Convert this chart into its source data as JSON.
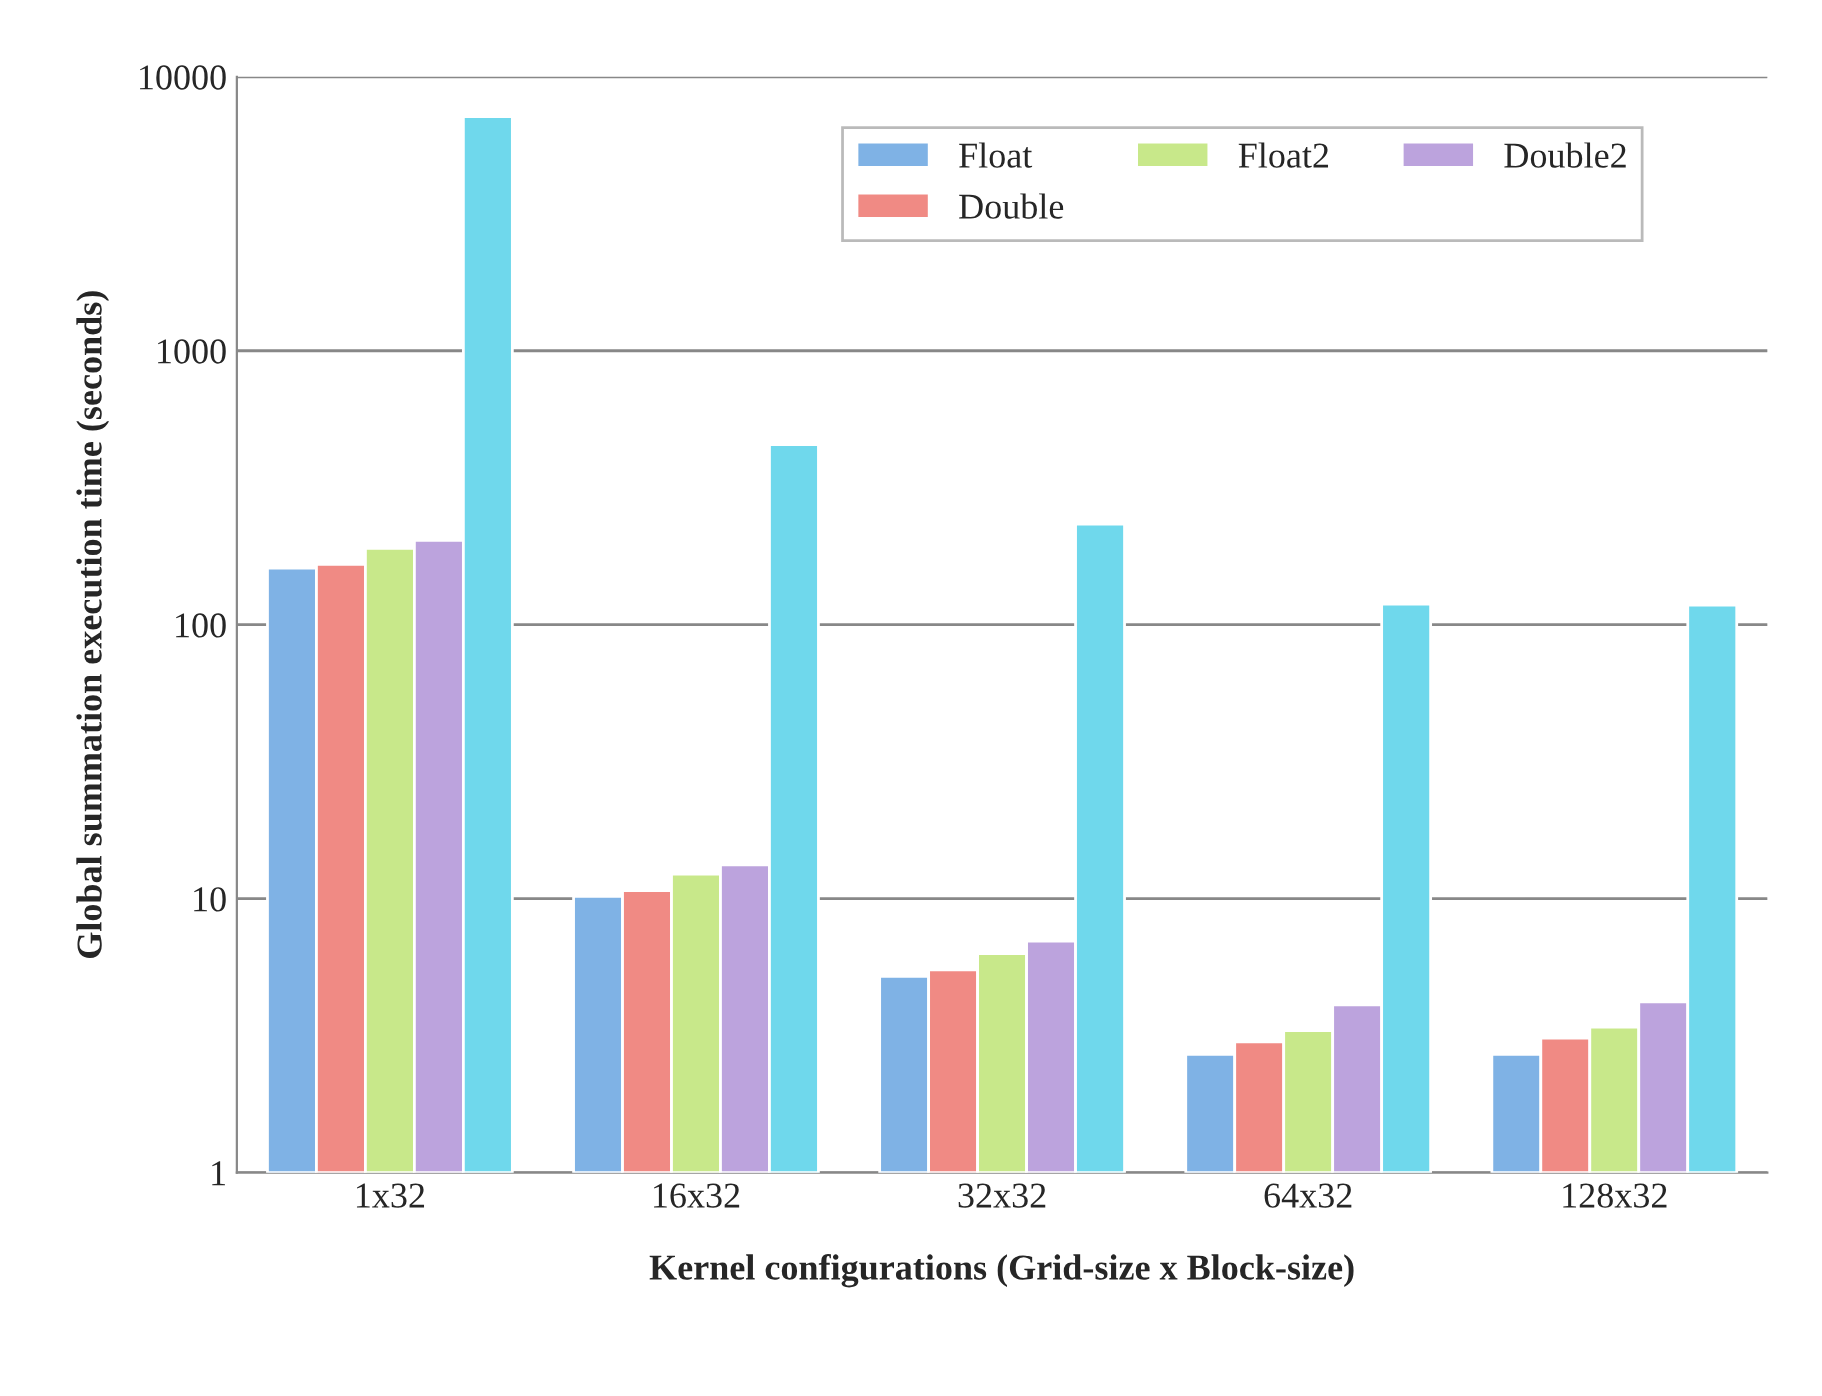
{
  "chart_data": {
    "type": "bar",
    "xlabel": "Kernel configurations (Grid-size x Block-size)",
    "ylabel": "Global summation execution time (seconds)",
    "categories": [
      "1x32",
      "16x32",
      "32x32",
      "64x32",
      "128x32"
    ],
    "series": [
      {
        "name": "Float",
        "color": "#7fb2e5",
        "values": [
          161,
          10.2,
          5.2,
          2.7,
          2.7
        ]
      },
      {
        "name": "Double",
        "color": "#f08a84",
        "values": [
          166,
          10.7,
          5.5,
          3.0,
          3.1
        ]
      },
      {
        "name": "Float2",
        "color": "#c8e88a",
        "values": [
          190,
          12.3,
          6.3,
          3.3,
          3.4
        ]
      },
      {
        "name": "Double2",
        "color": "#bca3dd",
        "values": [
          203,
          13.3,
          7.0,
          4.1,
          4.2
        ]
      },
      {
        "color": "#6fd8ec",
        "values": [
          7160,
          454,
          233,
          119,
          118
        ]
      }
    ],
    "log": "y",
    "ylim": [
      1,
      10000
    ],
    "yticks": [
      1,
      10,
      100,
      1000,
      10000
    ],
    "grid": "y",
    "legend": "top right"
  }
}
